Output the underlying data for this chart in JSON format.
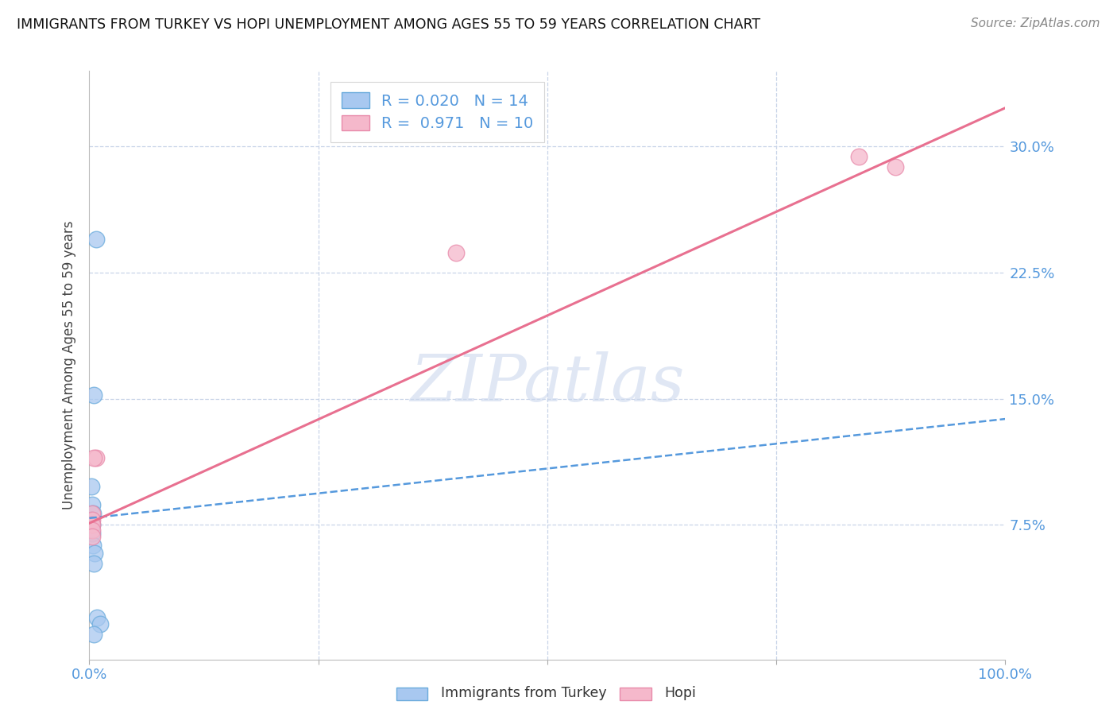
{
  "title": "IMMIGRANTS FROM TURKEY VS HOPI UNEMPLOYMENT AMONG AGES 55 TO 59 YEARS CORRELATION CHART",
  "source": "Source: ZipAtlas.com",
  "ylabel": "Unemployment Among Ages 55 to 59 years",
  "xlim": [
    0.0,
    1.0
  ],
  "ylim": [
    -0.005,
    0.345
  ],
  "yticks": [
    0.075,
    0.15,
    0.225,
    0.3
  ],
  "ytick_labels": [
    "7.5%",
    "15.0%",
    "22.5%",
    "30.0%"
  ],
  "xticks": [
    0.0,
    0.25,
    0.5,
    0.75,
    1.0
  ],
  "xtick_labels": [
    "0.0%",
    "",
    "",
    "",
    "100.0%"
  ],
  "blue_points_x": [
    0.007,
    0.005,
    0.002,
    0.003,
    0.004,
    0.002,
    0.003,
    0.003,
    0.004,
    0.006,
    0.005,
    0.008,
    0.012,
    0.005
  ],
  "blue_points_y": [
    0.245,
    0.152,
    0.098,
    0.087,
    0.082,
    0.078,
    0.075,
    0.07,
    0.063,
    0.058,
    0.052,
    0.02,
    0.016,
    0.01
  ],
  "pink_points_x": [
    0.007,
    0.005,
    0.003,
    0.003,
    0.003,
    0.003,
    0.003,
    0.4,
    0.84,
    0.88
  ],
  "pink_points_y": [
    0.115,
    0.115,
    0.082,
    0.078,
    0.075,
    0.072,
    0.068,
    0.237,
    0.294,
    0.288
  ],
  "blue_line_x": [
    0.0,
    1.0
  ],
  "blue_line_y": [
    0.079,
    0.138
  ],
  "pink_line_x": [
    0.0,
    1.0
  ],
  "pink_line_y": [
    0.076,
    0.323
  ],
  "R_blue": "0.020",
  "N_blue": "14",
  "R_pink": "0.971",
  "N_pink": "10",
  "blue_scatter_color": "#a8c8f0",
  "blue_scatter_edge": "#6aabdc",
  "pink_scatter_color": "#f5b8cb",
  "pink_scatter_edge": "#e88aaa",
  "blue_line_color": "#5599dd",
  "pink_line_color": "#e87090",
  "axis_tick_color": "#5599dd",
  "title_color": "#111111",
  "watermark_color": "#ccd8ee",
  "background_color": "#ffffff",
  "grid_color": "#c8d4e8",
  "legend_text_color": "#5599dd"
}
